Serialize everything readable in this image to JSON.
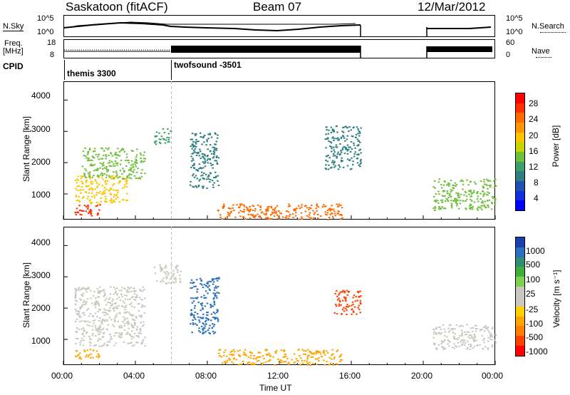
{
  "header": {
    "station": "Saskatoon (fitACF)",
    "beam": "Beam 07",
    "date": "12/Mar/2012"
  },
  "time_axis": {
    "label": "Time UT",
    "ticks": [
      "00:00",
      "04:00",
      "08:00",
      "12:00",
      "16:00",
      "20:00",
      "00:00"
    ],
    "range_hours": [
      0,
      24
    ]
  },
  "noise_panel": {
    "left_label": "N.Sky",
    "right_label": "N.Search",
    "left_ticks": [
      "10^5",
      "10^0"
    ],
    "right_ticks": [
      "10^5",
      "10^0"
    ]
  },
  "freq_panel": {
    "left_label_1": "Freq.",
    "left_label_2": "[MHz]",
    "right_label": "Nave",
    "left_ticks": [
      "18",
      "8"
    ],
    "right_ticks": [
      "60",
      "0"
    ]
  },
  "cpid": {
    "label": "CPID",
    "modes": [
      {
        "name": "themis 3300",
        "start_hour": 0
      },
      {
        "name": "twofsound -3501",
        "start_hour": 6
      }
    ]
  },
  "power_panel": {
    "ylabel": "Slant Range [km]",
    "yticks": [
      "4000",
      "3000",
      "2000",
      "1000"
    ],
    "colorbar_label": "Power [dB]",
    "colorbar_ticks": [
      "28",
      "24",
      "20",
      "16",
      "12",
      "8",
      "4"
    ],
    "colors": [
      "#ff0000",
      "#ff3000",
      "#ff6a00",
      "#ff9500",
      "#ffc400",
      "#c8d400",
      "#6fbf3b",
      "#3a9f6a",
      "#2f7f80",
      "#2050b0",
      "#1030e0",
      "#0000ff"
    ]
  },
  "velocity_panel": {
    "ylabel": "Slant Range [km]",
    "yticks": [
      "4000",
      "3000",
      "2000",
      "1000"
    ],
    "colorbar_label": "Velocity [m s⁻¹]",
    "colorbar_ticks": [
      "1000",
      "500",
      "100",
      "25",
      "-25",
      "-100",
      "-500",
      "-1000"
    ],
    "colors": [
      "#1a3fb0",
      "#2a6fc0",
      "#2f8f70",
      "#3fae3a",
      "#7fd050",
      "#c8c8c0",
      "#c8c8c0",
      "#ffd000",
      "#ffa500",
      "#ff8000",
      "#ff4000",
      "#ff0000"
    ]
  },
  "chart_data": [
    {
      "type": "heatmap",
      "title": "Power",
      "xlabel": "Time UT",
      "ylabel": "Slant Range [km]",
      "xlim": [
        0,
        24
      ],
      "ylim": [
        180,
        4600
      ],
      "legend": "right",
      "grid": false,
      "regions": [
        {
          "t0": 0.6,
          "t1": 2.0,
          "r0": 300,
          "r1": 700,
          "value": 26
        },
        {
          "t0": 0.6,
          "t1": 3.5,
          "r0": 700,
          "r1": 1600,
          "value": 18
        },
        {
          "t0": 1.0,
          "t1": 4.5,
          "r0": 1500,
          "r1": 2500,
          "value": 14
        },
        {
          "t0": 5.0,
          "t1": 6.0,
          "r0": 2600,
          "r1": 3100,
          "value": 10
        },
        {
          "t0": 7.0,
          "t1": 8.6,
          "r0": 1200,
          "r1": 3000,
          "value": 8
        },
        {
          "t0": 8.5,
          "t1": 15.5,
          "r0": 200,
          "r1": 700,
          "value": 24
        },
        {
          "t0": 14.5,
          "t1": 16.5,
          "r0": 1800,
          "r1": 3200,
          "value": 8
        },
        {
          "t0": 20.5,
          "t1": 24.0,
          "r0": 500,
          "r1": 1500,
          "value": 14
        }
      ]
    },
    {
      "type": "heatmap",
      "title": "Velocity",
      "xlabel": "Time UT",
      "ylabel": "Slant Range [km]",
      "xlim": [
        0,
        24
      ],
      "ylim": [
        180,
        4600
      ],
      "legend": "right",
      "grid": false,
      "regions": [
        {
          "t0": 0.6,
          "t1": 2.0,
          "r0": 400,
          "r1": 700,
          "value": -100
        },
        {
          "t0": 0.6,
          "t1": 4.5,
          "r0": 800,
          "r1": 2700,
          "value": 0
        },
        {
          "t0": 5.0,
          "t1": 6.5,
          "r0": 2800,
          "r1": 3400,
          "value": 0
        },
        {
          "t0": 7.0,
          "t1": 8.6,
          "r0": 1200,
          "r1": 3000,
          "value": 500
        },
        {
          "t0": 8.5,
          "t1": 15.5,
          "r0": 200,
          "r1": 700,
          "value": -100
        },
        {
          "t0": 15.0,
          "t1": 16.5,
          "r0": 1800,
          "r1": 2600,
          "value": -500
        },
        {
          "t0": 20.5,
          "t1": 24.0,
          "r0": 700,
          "r1": 1500,
          "value": 0
        }
      ]
    }
  ]
}
